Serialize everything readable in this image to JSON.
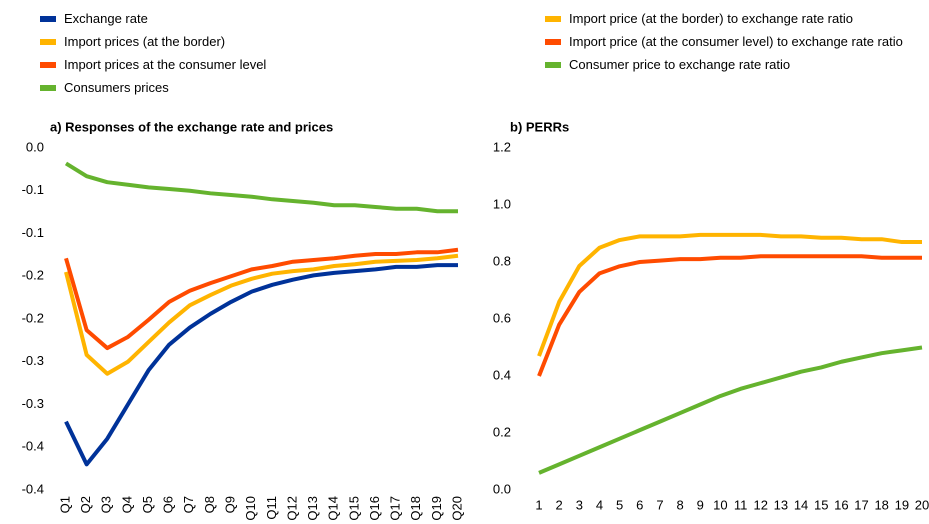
{
  "chart_data": [
    {
      "type": "line",
      "title": "a) Responses of the exchange rate and prices",
      "categories": [
        "Q1",
        "Q2",
        "Q3",
        "Q4",
        "Q5",
        "Q6",
        "Q7",
        "Q8",
        "Q9",
        "Q10",
        "Q11",
        "Q12",
        "Q13",
        "Q14",
        "Q15",
        "Q16",
        "Q17",
        "Q18",
        "Q19",
        "Q20"
      ],
      "ylim": [
        -0.4,
        0
      ],
      "yticks": [
        {
          "value": 0,
          "label": "0.0"
        },
        {
          "value": -0.05,
          "label": "-0.1"
        },
        {
          "value": -0.1,
          "label": "-0.1"
        },
        {
          "value": -0.15,
          "label": "-0.2"
        },
        {
          "value": -0.2,
          "label": "-0.2"
        },
        {
          "value": -0.25,
          "label": "-0.3"
        },
        {
          "value": -0.3,
          "label": "-0.3"
        },
        {
          "value": -0.35,
          "label": "-0.4"
        },
        {
          "value": -0.4,
          "label": "-0.4"
        }
      ],
      "series": [
        {
          "name": "Exchange  rate",
          "color": "#003299",
          "values": [
            -0.32,
            -0.37,
            -0.34,
            -0.3,
            -0.26,
            -0.23,
            -0.21,
            -0.194,
            -0.18,
            -0.168,
            -0.16,
            -0.154,
            -0.149,
            -0.146,
            -0.144,
            -0.142,
            -0.139,
            -0.139,
            -0.137,
            -0.137
          ]
        },
        {
          "name": "Import prices (at the border)",
          "color": "#FFB400",
          "values": [
            -0.145,
            -0.242,
            -0.264,
            -0.25,
            -0.227,
            -0.204,
            -0.184,
            -0.172,
            -0.161,
            -0.153,
            -0.147,
            -0.144,
            -0.142,
            -0.138,
            -0.136,
            -0.133,
            -0.132,
            -0.131,
            -0.129,
            -0.126
          ]
        },
        {
          "name": "Import prices at the consumer level",
          "color": "#FF4B00",
          "values": [
            -0.129,
            -0.213,
            -0.234,
            -0.221,
            -0.201,
            -0.18,
            -0.167,
            -0.158,
            -0.15,
            -0.142,
            -0.138,
            -0.133,
            -0.131,
            -0.129,
            -0.126,
            -0.124,
            -0.124,
            -0.122,
            -0.122,
            -0.119
          ]
        },
        {
          "name": "Consumers prices",
          "color": "#65B32E",
          "values": [
            -0.018,
            -0.033,
            -0.04,
            -0.043,
            -0.046,
            -0.048,
            -0.05,
            -0.053,
            -0.055,
            -0.057,
            -0.06,
            -0.062,
            -0.064,
            -0.067,
            -0.067,
            -0.069,
            -0.071,
            -0.071,
            -0.074,
            -0.074
          ]
        }
      ]
    },
    {
      "type": "line",
      "title": "b) PERRs",
      "categories": [
        "1",
        "2",
        "3",
        "4",
        "5",
        "6",
        "7",
        "8",
        "9",
        "10",
        "11",
        "12",
        "13",
        "14",
        "15",
        "16",
        "17",
        "18",
        "19",
        "20"
      ],
      "ylim": [
        0,
        1.2
      ],
      "yticks": [
        {
          "value": 0,
          "label": "0.0"
        },
        {
          "value": 0.2,
          "label": "0.2"
        },
        {
          "value": 0.4,
          "label": "0.4"
        },
        {
          "value": 0.6,
          "label": "0.6"
        },
        {
          "value": 0.8,
          "label": "0.8"
        },
        {
          "value": 1.0,
          "label": "1.0"
        },
        {
          "value": 1.2,
          "label": "1.2"
        }
      ],
      "series": [
        {
          "name": "Import price (at the border) to exchange rate ratio",
          "color": "#FFB400",
          "values": [
            0.47,
            0.66,
            0.786,
            0.85,
            0.877,
            0.89,
            0.89,
            0.89,
            0.895,
            0.895,
            0.895,
            0.895,
            0.89,
            0.89,
            0.885,
            0.885,
            0.88,
            0.88,
            0.87,
            0.87
          ]
        },
        {
          "name": "Import price (at the consumer level) to exchange rate ratio",
          "color": "#FF4B00",
          "values": [
            0.4,
            0.58,
            0.695,
            0.76,
            0.785,
            0.8,
            0.805,
            0.81,
            0.81,
            0.815,
            0.815,
            0.82,
            0.82,
            0.82,
            0.82,
            0.82,
            0.82,
            0.815,
            0.815,
            0.815
          ]
        },
        {
          "name": "Consumer price to exchange rate ratio",
          "color": "#65B32E",
          "values": [
            0.06,
            0.09,
            0.12,
            0.15,
            0.18,
            0.21,
            0.24,
            0.27,
            0.3,
            0.33,
            0.355,
            0.375,
            0.395,
            0.415,
            0.43,
            0.45,
            0.465,
            0.48,
            0.49,
            0.5
          ]
        }
      ]
    }
  ]
}
